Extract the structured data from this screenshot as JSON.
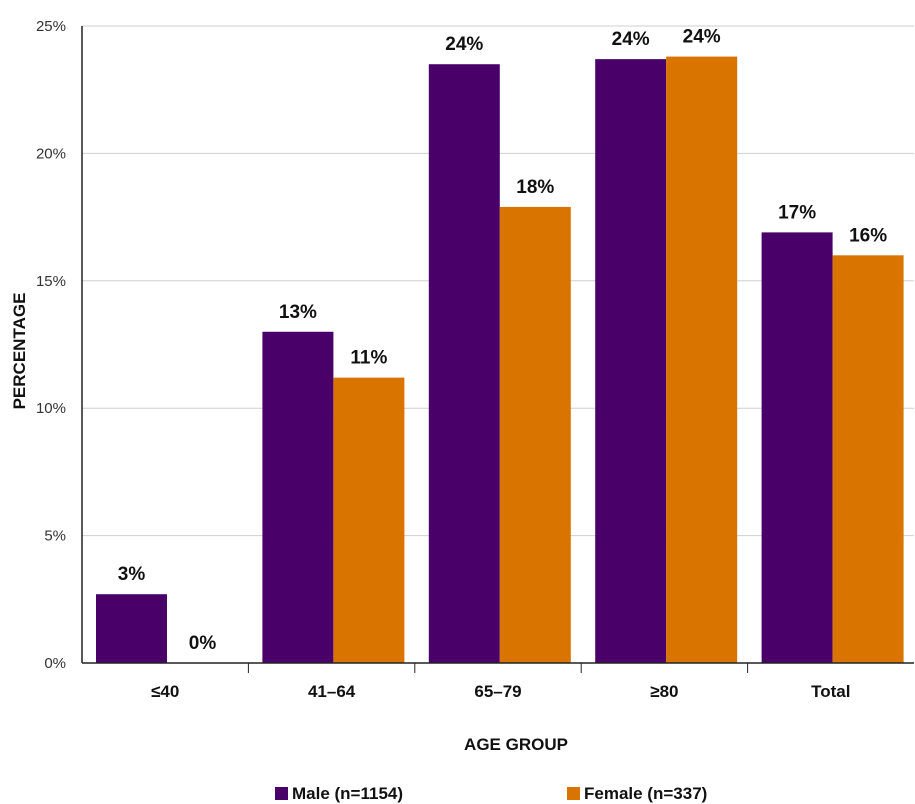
{
  "chart_data": {
    "type": "bar",
    "categories": [
      "≤40",
      "41–64",
      "65–79",
      "≥80",
      "Total"
    ],
    "series": [
      {
        "name": "Male (n=1154)",
        "color": "#4a0069",
        "values": [
          2.7,
          13.0,
          23.5,
          23.7,
          16.9
        ],
        "labels": [
          "3%",
          "13%",
          "24%",
          "24%",
          "17%"
        ]
      },
      {
        "name": "Female (n=337)",
        "color": "#d97400",
        "values": [
          0,
          11.2,
          17.9,
          23.8,
          16.0
        ],
        "labels": [
          "0%",
          "11%",
          "18%",
          "24%",
          "16%"
        ]
      }
    ],
    "xlabel": "AGE GROUP",
    "ylabel": "PERCENTAGE",
    "ylim": [
      0,
      25
    ],
    "yticks": [
      0,
      5,
      10,
      15,
      20,
      25
    ],
    "ytick_labels": [
      "0%",
      "5%",
      "10%",
      "15%",
      "20%",
      "25%"
    ],
    "grid": true,
    "legend_position": "bottom"
  }
}
